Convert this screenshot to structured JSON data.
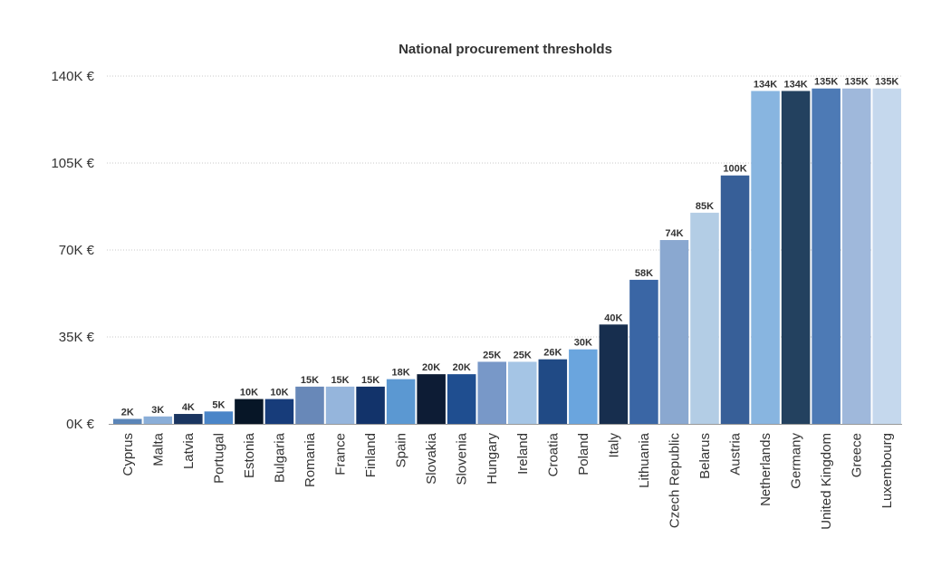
{
  "chart_data": {
    "type": "bar",
    "title": "National procurement thresholds",
    "xlabel": "",
    "ylabel": "",
    "ylim": [
      0,
      140000
    ],
    "yticks": [
      {
        "value": 0,
        "label": "0K €"
      },
      {
        "value": 35000,
        "label": "35K €"
      },
      {
        "value": 70000,
        "label": "70K €"
      },
      {
        "value": 105000,
        "label": "105K €"
      },
      {
        "value": 140000,
        "label": "140K €"
      }
    ],
    "grid": true,
    "legend": "none",
    "categories": [
      "Cyprus",
      "Malta",
      "Latvia",
      "Portugal",
      "Estonia",
      "Bulgaria",
      "Romania",
      "France",
      "Finland",
      "Spain",
      "Slovakia",
      "Slovenia",
      "Hungary",
      "Ireland",
      "Croatia",
      "Poland",
      "Italy",
      "Lithuania",
      "Czech Republic",
      "Belarus",
      "Austria",
      "Netherlands",
      "Germany",
      "United Kingdom",
      "Greece",
      "Luxembourg"
    ],
    "values": [
      2000,
      3000,
      4000,
      5000,
      10000,
      10000,
      15000,
      15000,
      15000,
      18000,
      20000,
      20000,
      25000,
      25000,
      26000,
      30000,
      40000,
      58000,
      74000,
      85000,
      100000,
      134000,
      134000,
      135000,
      135000,
      135000
    ],
    "data_labels": [
      "2K",
      "3K",
      "4K",
      "5K",
      "10K",
      "10K",
      "15K",
      "15K",
      "15K",
      "18K",
      "20K",
      "20K",
      "25K",
      "25K",
      "26K",
      "30K",
      "40K",
      "58K",
      "74K",
      "85K",
      "100K",
      "134K",
      "134K",
      "135K",
      "135K",
      "135K"
    ],
    "colors": [
      "#5b85b8",
      "#8aaed8",
      "#1a3560",
      "#4a85c8",
      "#071627",
      "#173c7a",
      "#6888b8",
      "#95b5dc",
      "#12336a",
      "#5b98d2",
      "#0d1c35",
      "#1f4e90",
      "#7898c8",
      "#a5c5e5",
      "#204a85",
      "#6aa5de",
      "#172e4e",
      "#3a66a5",
      "#8aa8d0",
      "#b3cde5",
      "#375f98",
      "#88b5e0",
      "#23415f",
      "#4d7ab5",
      "#9fb8db",
      "#c5d8ed"
    ]
  }
}
